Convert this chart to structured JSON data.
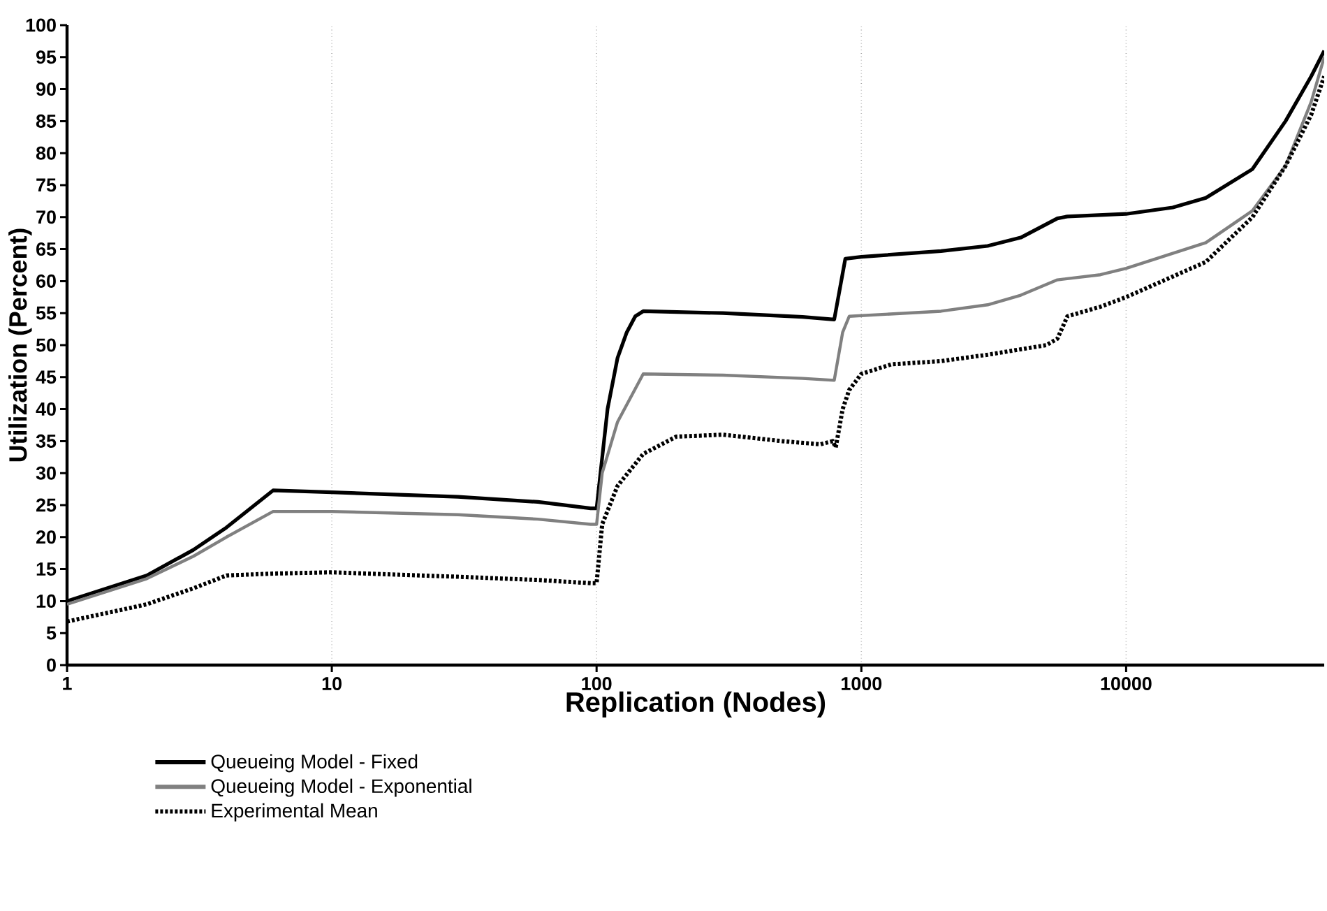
{
  "chart_data": {
    "type": "line",
    "xlabel": "Replication (Nodes)",
    "ylabel": "Utilization (Percent)",
    "log": "x",
    "grid": "x",
    "legend": "bottom",
    "marker": "none",
    "xlim": [
      1,
      56000
    ],
    "ylim": [
      0,
      100
    ],
    "xticks": [
      1,
      10,
      100,
      1000,
      10000
    ],
    "yticks": [
      0,
      5,
      10,
      15,
      20,
      25,
      30,
      35,
      40,
      45,
      50,
      55,
      60,
      65,
      70,
      75,
      80,
      85,
      90,
      95,
      100
    ],
    "series": [
      {
        "name": "Queueing Model - Fixed",
        "color": "#000000",
        "line_style": "solid",
        "x": [
          1,
          2,
          3,
          4,
          6,
          10,
          30,
          60,
          95,
          100,
          110,
          120,
          130,
          140,
          150,
          300,
          600,
          790,
          870,
          1000,
          2000,
          3000,
          4000,
          5500,
          6000,
          10000,
          15000,
          20000,
          30000,
          40000,
          50000,
          56000
        ],
        "values": [
          10,
          14,
          18,
          21.5,
          27.3,
          27,
          26.3,
          25.5,
          24.5,
          24.5,
          40,
          48,
          52,
          54.5,
          55.3,
          55,
          54.4,
          54,
          63.5,
          63.8,
          64.7,
          65.5,
          66.8,
          69.8,
          70.1,
          70.5,
          71.5,
          73,
          77.5,
          85,
          92,
          96
        ]
      },
      {
        "name": "Queueing Model - Exponential",
        "color": "#808080",
        "line_style": "solid",
        "x": [
          1,
          2,
          3,
          4,
          6,
          10,
          30,
          60,
          95,
          100,
          105,
          120,
          150,
          300,
          600,
          790,
          850,
          900,
          2000,
          3000,
          4000,
          5500,
          8000,
          10000,
          20000,
          30000,
          40000,
          50000,
          56000
        ],
        "values": [
          9.5,
          13.5,
          17,
          20,
          24,
          24,
          23.5,
          22.8,
          22,
          22,
          30,
          38,
          45.5,
          45.3,
          44.8,
          44.5,
          52,
          54.5,
          55.3,
          56.3,
          57.8,
          60.2,
          61,
          62,
          66,
          71,
          78,
          88,
          95
        ]
      },
      {
        "name": "Experimental Mean",
        "color": "#000000",
        "line_style": "dotted",
        "x": [
          1,
          2,
          3,
          4,
          6,
          10,
          30,
          60,
          95,
          100,
          105,
          120,
          150,
          200,
          300,
          500,
          700,
          780,
          800,
          850,
          900,
          1000,
          1300,
          2000,
          3000,
          5000,
          5500,
          6000,
          8000,
          10000,
          20000,
          30000,
          40000,
          50000,
          56000
        ],
        "values": [
          6.8,
          9.5,
          12,
          14,
          14.3,
          14.5,
          13.8,
          13.3,
          12.8,
          12.8,
          22,
          28,
          33,
          35.7,
          36,
          35,
          34.5,
          35,
          34,
          40,
          43,
          45.5,
          47,
          47.5,
          48.5,
          50,
          51,
          54.5,
          56,
          57.5,
          63,
          70,
          78,
          86,
          92
        ]
      }
    ]
  }
}
